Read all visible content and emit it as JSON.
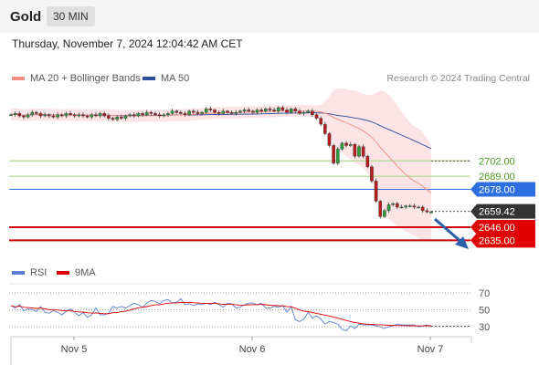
{
  "header": {
    "instrument": "Gold",
    "timeframe": "30 MIN"
  },
  "datetime": "Thursday, November 7, 2024 12:04:42 AM CET",
  "legend": {
    "ma20": {
      "label": "MA 20 + Bollinger Bands",
      "color": "#f28b82"
    },
    "ma50": {
      "label": "MA 50",
      "color": "#2a4d9c"
    }
  },
  "credit": "Research © 2024 Trading Central",
  "rsi_legend": {
    "rsi": {
      "label": "RSI",
      "color": "#5b7fd6"
    },
    "ma9": {
      "label": "9MA",
      "color": "#e00000"
    }
  },
  "chart_data": [
    {
      "type": "candlestick",
      "x_tick_labels": [
        "Nov 5",
        "Nov 6",
        "Nov 7"
      ],
      "ylim": [
        2626,
        2740
      ],
      "price_levels": [
        {
          "label": "2702.00",
          "value": 2702.0,
          "kind": "resistance"
        },
        {
          "label": "2689.00",
          "value": 2689.0,
          "kind": "resistance"
        },
        {
          "label": "2678.00",
          "value": 2678.0,
          "kind": "pivot"
        },
        {
          "label": "2659.42",
          "value": 2659.42,
          "kind": "last"
        },
        {
          "label": "2646.00",
          "value": 2646.0,
          "kind": "support"
        },
        {
          "label": "2635.00",
          "value": 2635.0,
          "kind": "support"
        }
      ],
      "closes": [
        2741,
        2742,
        2740,
        2739,
        2741,
        2743,
        2742,
        2740,
        2741,
        2740,
        2739,
        2741,
        2740,
        2742,
        2741,
        2740,
        2741,
        2740,
        2739,
        2741,
        2740,
        2742,
        2740,
        2738,
        2737,
        2739,
        2738,
        2740,
        2741,
        2740,
        2742,
        2741,
        2743,
        2742,
        2741,
        2740,
        2741,
        2742,
        2744,
        2743,
        2742,
        2741,
        2744,
        2743,
        2742,
        2743,
        2746,
        2745,
        2743,
        2742,
        2744,
        2743,
        2742,
        2743,
        2744,
        2745,
        2744,
        2743,
        2745,
        2744,
        2746,
        2745,
        2744,
        2747,
        2745,
        2743,
        2746,
        2744,
        2742,
        2743,
        2744,
        2741,
        2738,
        2733,
        2725,
        2715,
        2700,
        2712,
        2717,
        2715,
        2716,
        2706,
        2714,
        2706,
        2697,
        2685,
        2668,
        2655,
        2660,
        2665,
        2666,
        2663,
        2663,
        2664,
        2664,
        2663,
        2663,
        2660,
        2659,
        2659
      ]
    },
    {
      "type": "line",
      "title": "RSI",
      "y_tick_labels": [
        "70",
        "50",
        "30"
      ],
      "ylim": [
        20,
        80
      ],
      "series": [
        {
          "name": "RSI",
          "values": [
            55,
            52,
            56,
            49,
            51,
            50,
            48,
            54,
            47,
            46,
            49,
            47,
            44,
            48,
            51,
            47,
            43,
            47,
            41,
            44,
            52,
            44,
            44,
            46,
            54,
            52,
            54,
            52,
            55,
            58,
            56,
            53,
            58,
            61,
            60,
            57,
            61,
            62,
            58,
            59,
            63,
            56,
            57,
            55,
            57,
            56,
            58,
            56,
            59,
            56,
            53,
            58,
            57,
            52,
            53,
            56,
            58,
            58,
            56,
            58,
            52,
            52,
            54,
            53,
            55,
            47,
            54,
            38,
            36,
            39,
            47,
            40,
            43,
            39,
            33,
            36,
            35,
            33,
            27,
            25,
            31,
            28,
            33,
            32,
            32,
            32,
            31,
            30,
            28,
            30,
            31,
            33,
            32,
            32,
            32,
            32,
            30,
            31,
            32,
            30
          ]
        },
        {
          "name": "9MA",
          "values": [
            55,
            53.5,
            54.3,
            53,
            52.6,
            52.2,
            51.6,
            52,
            51.1,
            50.2,
            50.3,
            49.7,
            49.1,
            48.8,
            48.7,
            47.9,
            47.5,
            47.3,
            46.5,
            46.1,
            46.3,
            45.7,
            45.4,
            45.3,
            46.5,
            46.6,
            47.7,
            48.5,
            49.7,
            51.2,
            52.4,
            53,
            53.8,
            55,
            55.8,
            56,
            56.9,
            57.8,
            58,
            58.2,
            58.9,
            58.8,
            58.9,
            58.3,
            58.2,
            57.8,
            57.7,
            57.5,
            57.5,
            57.1,
            56.4,
            56.6,
            56.6,
            55.8,
            55.5,
            55.6,
            55.9,
            56,
            56.1,
            56.4,
            55.9,
            55.4,
            55.1,
            54.9,
            54.8,
            53.7,
            53.7,
            51.9,
            49.8,
            48.4,
            47.8,
            46.7,
            45.8,
            44.7,
            43.6,
            42.6,
            41.4,
            40.2,
            38.8,
            37.4,
            36.1,
            34.9,
            34.1,
            33.4,
            33,
            32.7,
            32.4,
            32.3,
            31.9,
            31.6,
            31.4,
            31.4,
            31.3,
            31.2,
            31.1,
            31,
            30.9,
            30.9,
            31.1,
            31.1
          ]
        }
      ]
    }
  ]
}
